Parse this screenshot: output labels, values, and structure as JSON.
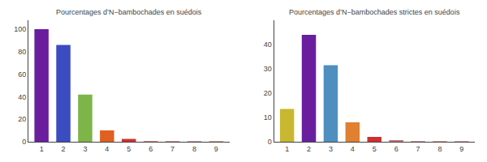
{
  "chart_data": [
    {
      "type": "bar",
      "title": "Pourcentages d’N−bambochades en suédois",
      "x": [
        1,
        2,
        3,
        4,
        5,
        6,
        7,
        8,
        9
      ],
      "values": [
        100,
        86,
        42,
        10,
        2.5,
        0.5,
        0.15,
        0.08,
        0.04
      ],
      "colors": [
        "#6a1e9e",
        "#3b4cc0",
        "#7db548",
        "#e06020",
        "#d03030",
        "#d08080",
        "#d09090",
        "#d09898",
        "#d09c9c"
      ],
      "xlim": [
        0.4,
        9.6
      ],
      "xticks": [
        1,
        2,
        3,
        4,
        5,
        6,
        7,
        8,
        9
      ],
      "ylim": [
        0,
        108
      ],
      "yticks": [
        0,
        20,
        40,
        60,
        80,
        100
      ],
      "grid": false
    },
    {
      "type": "bar",
      "title": "Pourcentages d’N−bambochades strictes en suédois",
      "x": [
        1,
        2,
        3,
        4,
        5,
        6,
        7,
        8,
        9
      ],
      "values": [
        13.5,
        44,
        31.5,
        8,
        2.0,
        0.5,
        0.15,
        0.08,
        0.04
      ],
      "colors": [
        "#c8b830",
        "#6a1e9e",
        "#4e8fbf",
        "#e08030",
        "#d03030",
        "#c07070",
        "#d09090",
        "#d09898",
        "#d09c9c"
      ],
      "xlim": [
        0.4,
        9.6
      ],
      "xticks": [
        1,
        2,
        3,
        4,
        5,
        6,
        7,
        8,
        9
      ],
      "ylim": [
        0,
        50
      ],
      "yticks": [
        0,
        10,
        20,
        30,
        40
      ],
      "grid": false
    }
  ]
}
